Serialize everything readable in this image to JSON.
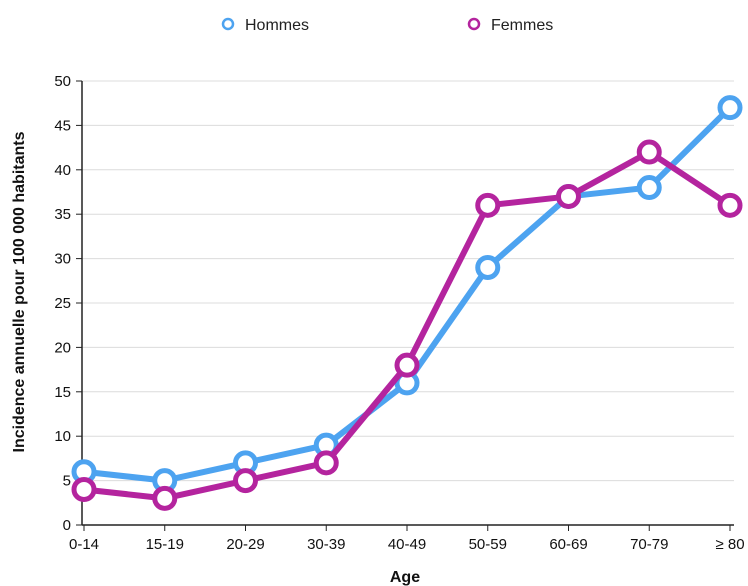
{
  "chart_data": {
    "type": "line",
    "categories": [
      "0-14",
      "15-19",
      "20-29",
      "30-39",
      "40-49",
      "50-59",
      "60-69",
      "70-79",
      "≥ 80"
    ],
    "series": [
      {
        "name": "Hommes",
        "color": "#4da3f0",
        "values": [
          6,
          5,
          7,
          9,
          16,
          29,
          37,
          38,
          47
        ]
      },
      {
        "name": "Femmes",
        "color": "#b4249e",
        "values": [
          4,
          3,
          5,
          7,
          18,
          36,
          37,
          42,
          36
        ]
      }
    ],
    "title": "",
    "xlabel": "Age",
    "ylabel": "Incidence annuelle pour 100 000 habitants",
    "ylim": [
      0,
      50
    ],
    "yticks": [
      0,
      5,
      10,
      15,
      20,
      25,
      30,
      35,
      40,
      45,
      50
    ],
    "grid": true,
    "legend_position": "top"
  }
}
